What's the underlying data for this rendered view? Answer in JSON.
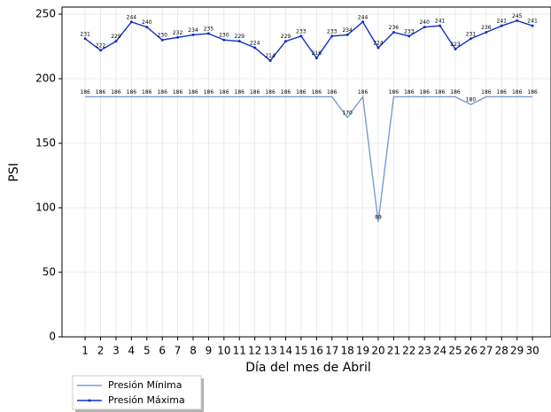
{
  "chart_data": {
    "type": "line",
    "x": [
      1,
      2,
      3,
      4,
      5,
      6,
      7,
      8,
      9,
      10,
      11,
      12,
      13,
      14,
      15,
      16,
      17,
      18,
      19,
      20,
      21,
      22,
      23,
      24,
      25,
      26,
      27,
      28,
      29,
      30
    ],
    "series": [
      {
        "name": "Presión Mínima",
        "color": "#7b9bd1",
        "marker": false,
        "values": [
          186,
          186,
          186,
          186,
          186,
          186,
          186,
          186,
          186,
          186,
          186,
          186,
          186,
          186,
          186,
          186,
          186,
          170,
          186,
          89,
          186,
          186,
          186,
          186,
          186,
          180,
          186,
          186,
          186,
          186
        ]
      },
      {
        "name": "Presión Máxima",
        "color": "#1130c9",
        "marker": true,
        "values": [
          231,
          222,
          229,
          244,
          240,
          230,
          232,
          234,
          235,
          230,
          229,
          224,
          214,
          229,
          233,
          216,
          233,
          234,
          244,
          224,
          236,
          233,
          240,
          241,
          223,
          231,
          236,
          241,
          245,
          241
        ]
      }
    ],
    "xlabel": "Día del mes de  Abril",
    "ylabel": "PSI",
    "xlim": [
      -0.5,
      31.2
    ],
    "ylim": [
      0,
      255.5
    ],
    "xticks": [
      1,
      2,
      3,
      4,
      5,
      6,
      7,
      8,
      9,
      10,
      11,
      12,
      13,
      14,
      15,
      16,
      17,
      18,
      19,
      20,
      21,
      22,
      23,
      24,
      25,
      26,
      27,
      28,
      29,
      30
    ],
    "yticks": [
      0,
      50,
      100,
      150,
      200,
      250
    ],
    "grid": true,
    "legend": "below-left"
  }
}
